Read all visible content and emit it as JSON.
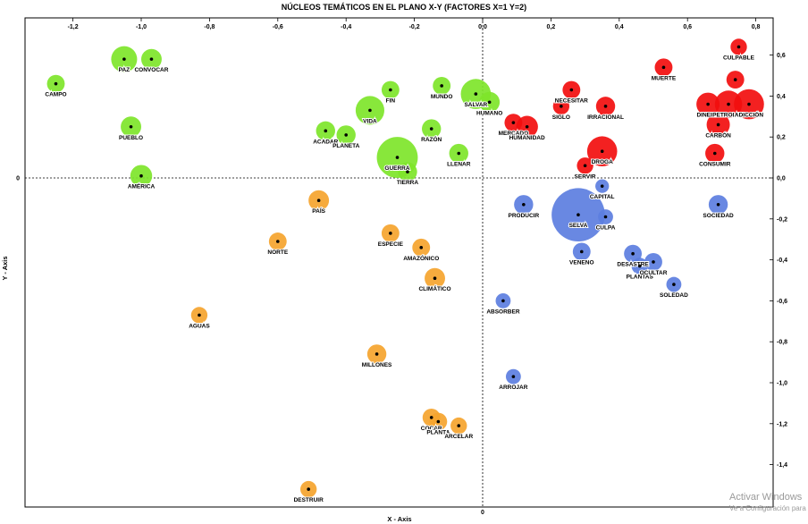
{
  "chart_data": {
    "type": "scatter",
    "title": "NÚCLEOS TEMÁTICOS EN EL PLANO X-Y  (FACTORES X=1 Y=2)",
    "xlabel": "X - Axis",
    "ylabel": "Y - Axis",
    "xlim": [
      -1.35,
      0.85
    ],
    "ylim": [
      -1.6,
      0.7
    ],
    "x_ticks": [
      {
        "v": -1.2,
        "label": "-1,2"
      },
      {
        "v": -1.0,
        "label": "-1,0"
      },
      {
        "v": -0.8,
        "label": "-0,8"
      },
      {
        "v": -0.6,
        "label": "-0,6"
      },
      {
        "v": -0.4,
        "label": "-0,4"
      },
      {
        "v": -0.2,
        "label": "-0,2"
      },
      {
        "v": 0.0,
        "label": "0,0"
      },
      {
        "v": 0.2,
        "label": "0,2"
      },
      {
        "v": 0.4,
        "label": "0,4"
      },
      {
        "v": 0.6,
        "label": "0,6"
      },
      {
        "v": 0.8,
        "label": "0,8"
      }
    ],
    "y_ticks": [
      {
        "v": 0.6,
        "label": "0,6"
      },
      {
        "v": 0.4,
        "label": "0,4"
      },
      {
        "v": 0.2,
        "label": "0,2"
      },
      {
        "v": 0.0,
        "label": "0,0"
      },
      {
        "v": -0.2,
        "label": "-0,2"
      },
      {
        "v": -0.4,
        "label": "-0,4"
      },
      {
        "v": -0.6,
        "label": "-0,6"
      },
      {
        "v": -0.8,
        "label": "-0,8"
      },
      {
        "v": -1.0,
        "label": "-1,0"
      },
      {
        "v": -1.2,
        "label": "-1,2"
      },
      {
        "v": -1.4,
        "label": "-1,4"
      }
    ],
    "grid": false,
    "series": [
      {
        "name": "green",
        "color": "#7ee52a",
        "points": [
          {
            "label": "CAMPO",
            "x": -1.25,
            "y": 0.46,
            "size": 0.026
          },
          {
            "label": "PAZ",
            "x": -1.05,
            "y": 0.58,
            "size": 0.038
          },
          {
            "label": "CONVOCAR",
            "x": -0.97,
            "y": 0.58,
            "size": 0.03
          },
          {
            "label": "PUEBLO",
            "x": -1.03,
            "y": 0.25,
            "size": 0.03
          },
          {
            "label": "AMÉRICA",
            "x": -1.0,
            "y": 0.01,
            "size": 0.032
          },
          {
            "label": "ACADAR",
            "x": -0.46,
            "y": 0.23,
            "size": 0.028
          },
          {
            "label": "PLANETA",
            "x": -0.4,
            "y": 0.21,
            "size": 0.028
          },
          {
            "label": "VIDA",
            "x": -0.33,
            "y": 0.33,
            "size": 0.042
          },
          {
            "label": "FIN",
            "x": -0.27,
            "y": 0.43,
            "size": 0.026
          },
          {
            "label": "GUERRA",
            "x": -0.25,
            "y": 0.1,
            "size": 0.06
          },
          {
            "label": "TIERRA",
            "x": -0.22,
            "y": 0.03,
            "size": 0.028
          },
          {
            "label": "RAZÓN",
            "x": -0.15,
            "y": 0.24,
            "size": 0.028
          },
          {
            "label": "LLENAR",
            "x": -0.07,
            "y": 0.12,
            "size": 0.028
          },
          {
            "label": "MUNDO",
            "x": -0.12,
            "y": 0.45,
            "size": 0.026
          },
          {
            "label": "SALVAR",
            "x": -0.02,
            "y": 0.41,
            "size": 0.044
          },
          {
            "label": "HUMANO",
            "x": 0.02,
            "y": 0.37,
            "size": 0.03
          }
        ]
      },
      {
        "name": "red",
        "color": "#f20e0e",
        "points": [
          {
            "label": "MERCADO",
            "x": 0.09,
            "y": 0.27,
            "size": 0.026
          },
          {
            "label": "HUMANIDAD",
            "x": 0.13,
            "y": 0.25,
            "size": 0.032
          },
          {
            "label": "NECESITAR",
            "x": 0.26,
            "y": 0.43,
            "size": 0.026
          },
          {
            "label": "SIGLO",
            "x": 0.23,
            "y": 0.35,
            "size": 0.024
          },
          {
            "label": "IRRACIONAL",
            "x": 0.36,
            "y": 0.35,
            "size": 0.028
          },
          {
            "label": "DROGA",
            "x": 0.35,
            "y": 0.13,
            "size": 0.044
          },
          {
            "label": "SERVIR",
            "x": 0.3,
            "y": 0.06,
            "size": 0.024
          },
          {
            "label": "MUERTE",
            "x": 0.53,
            "y": 0.54,
            "size": 0.026
          },
          {
            "label": "CULPABLE",
            "x": 0.75,
            "y": 0.64,
            "size": 0.024
          },
          {
            "label": "DINERO",
            "x": 0.66,
            "y": 0.36,
            "size": 0.034
          },
          {
            "label": "PETROLEO",
            "x": 0.72,
            "y": 0.36,
            "size": 0.04
          },
          {
            "label": "ADICCIÓN",
            "x": 0.78,
            "y": 0.36,
            "size": 0.044
          },
          {
            "label": "CARBÓN",
            "x": 0.69,
            "y": 0.26,
            "size": 0.034
          },
          {
            "label": "CONSUMIR",
            "x": 0.68,
            "y": 0.12,
            "size": 0.028
          },
          {
            "label": "",
            "x": 0.74,
            "y": 0.48,
            "size": 0.026
          }
        ]
      },
      {
        "name": "blue",
        "color": "#5c7ee0",
        "points": [
          {
            "label": "PRODUCIR",
            "x": 0.12,
            "y": -0.13,
            "size": 0.028
          },
          {
            "label": "SELVA",
            "x": 0.28,
            "y": -0.18,
            "size": 0.078
          },
          {
            "label": "CAPITAL",
            "x": 0.35,
            "y": -0.04,
            "size": 0.02
          },
          {
            "label": "CULPA",
            "x": 0.36,
            "y": -0.19,
            "size": 0.022
          },
          {
            "label": "VENENO",
            "x": 0.29,
            "y": -0.36,
            "size": 0.026
          },
          {
            "label": "DESASTRE",
            "x": 0.44,
            "y": -0.37,
            "size": 0.026
          },
          {
            "label": "PLANTAS",
            "x": 0.46,
            "y": -0.43,
            "size": 0.024
          },
          {
            "label": "OCULTAR",
            "x": 0.5,
            "y": -0.41,
            "size": 0.026
          },
          {
            "label": "SOLEDAD",
            "x": 0.56,
            "y": -0.52,
            "size": 0.022
          },
          {
            "label": "SOCIEDAD",
            "x": 0.69,
            "y": -0.13,
            "size": 0.028
          },
          {
            "label": "ABSORBER",
            "x": 0.06,
            "y": -0.6,
            "size": 0.022
          },
          {
            "label": "ARROJAR",
            "x": 0.09,
            "y": -0.97,
            "size": 0.022
          }
        ]
      },
      {
        "name": "orange",
        "color": "#f5a42e",
        "points": [
          {
            "label": "PAÍS",
            "x": -0.48,
            "y": -0.11,
            "size": 0.03
          },
          {
            "label": "NORTE",
            "x": -0.6,
            "y": -0.31,
            "size": 0.026
          },
          {
            "label": "ESPECIE",
            "x": -0.27,
            "y": -0.27,
            "size": 0.026
          },
          {
            "label": "AMAZÓNICO",
            "x": -0.18,
            "y": -0.34,
            "size": 0.026
          },
          {
            "label": "CLIMÁTICO",
            "x": -0.14,
            "y": -0.49,
            "size": 0.03
          },
          {
            "label": "AGUAS",
            "x": -0.83,
            "y": -0.67,
            "size": 0.024
          },
          {
            "label": "MILLONES",
            "x": -0.31,
            "y": -0.86,
            "size": 0.028
          },
          {
            "label": "COCAR",
            "x": -0.15,
            "y": -1.17,
            "size": 0.026
          },
          {
            "label": "PLANTA",
            "x": -0.13,
            "y": -1.19,
            "size": 0.026
          },
          {
            "label": "ARCELAR",
            "x": -0.07,
            "y": -1.21,
            "size": 0.024
          },
          {
            "label": "DESTRUIR",
            "x": -0.51,
            "y": -1.52,
            "size": 0.024
          }
        ]
      }
    ]
  },
  "watermark": {
    "line1": "Activar Windows",
    "line2": "Ve a Configuración para activar Windows."
  }
}
